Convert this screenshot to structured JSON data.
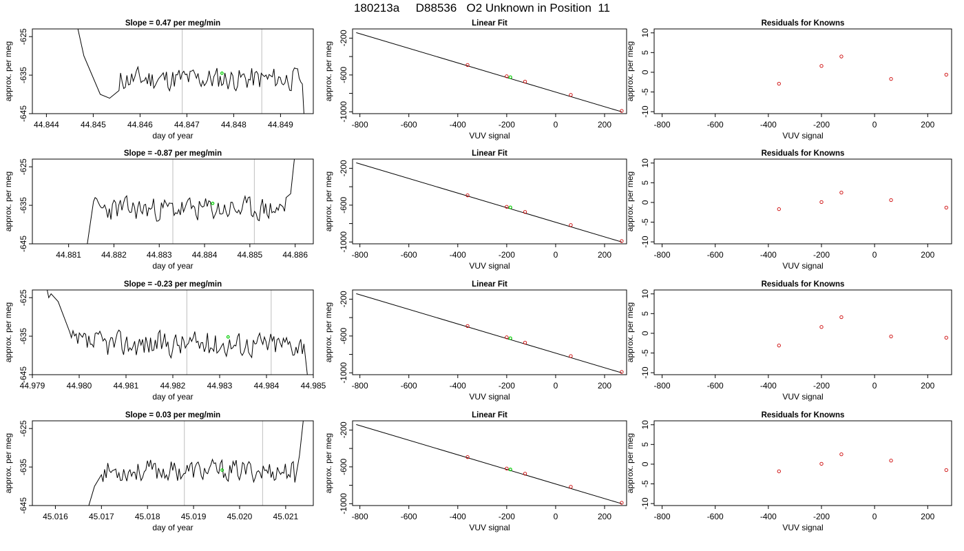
{
  "page_title": "180213a     D88536   O2 Unknown in Position  11",
  "colors": {
    "line": "#000000",
    "highlight_green": "#00cc00",
    "marker_red": "#cc0000",
    "vline_gray": "#c8c8c8"
  },
  "chart_data": [
    {
      "type": "line",
      "row": 1,
      "title": "Slope =  0.47  per meg/min",
      "xlabel": "day of year",
      "ylabel": "approx. per meg",
      "xlim": [
        44.8437,
        44.8497
      ],
      "ylim": [
        -645,
        -623
      ],
      "xticks": [
        44.844,
        44.845,
        44.846,
        44.847,
        44.848,
        44.849
      ],
      "xtick_labels": [
        "44.844",
        "44.845",
        "44.846",
        "44.847",
        "44.848",
        "44.849"
      ],
      "yticks": [
        -625,
        -635,
        -645
      ],
      "ytick_labels": [
        "-625",
        "-635",
        "-645"
      ],
      "vlines": [
        44.8469,
        44.8486
      ],
      "highlight_point": {
        "x": 44.84775,
        "y": -634.5
      },
      "series": [
        {
          "start": 44.8443,
          "end": 44.8497,
          "segments": [
            [
              44.8443,
              -620
            ],
            [
              44.8446,
              -619
            ],
            [
              44.8448,
              -630
            ],
            [
              44.84515,
              -640
            ],
            [
              44.84535,
              -641
            ],
            [
              44.84555,
              -639
            ],
            [
              44.8495,
              -645
            ],
            [
              44.8497,
              -648
            ]
          ],
          "mean": -636,
          "amp": 2.4,
          "seed": 11
        }
      ]
    },
    {
      "type": "line",
      "row": 2,
      "title": "Slope =  -0.87  per meg/min",
      "xlabel": "day of year",
      "ylabel": "approx. per meg",
      "xlim": [
        44.8802,
        44.8864
      ],
      "ylim": [
        -645,
        -623
      ],
      "xticks": [
        44.881,
        44.882,
        44.883,
        44.884,
        44.885,
        44.886
      ],
      "xtick_labels": [
        "44.881",
        "44.882",
        "44.883",
        "44.884",
        "44.885",
        "44.886"
      ],
      "yticks": [
        -625,
        -635,
        -645
      ],
      "ytick_labels": [
        "-625",
        "-635",
        "-645"
      ],
      "vlines": [
        44.8833,
        44.8851
      ],
      "highlight_point": {
        "x": 44.88418,
        "y": -634.5
      },
      "series": [
        {
          "start": 44.8812,
          "end": 44.886,
          "segments": [
            [
              44.8812,
              -646
            ],
            [
              44.8814,
              -646
            ],
            [
              44.88155,
              -634
            ],
            [
              44.8858,
              -633
            ],
            [
              44.8859,
              -632
            ],
            [
              44.886,
              -621
            ]
          ],
          "mean": -636,
          "amp": 2.4,
          "seed": 23
        }
      ]
    },
    {
      "type": "line",
      "row": 3,
      "title": "Slope =  -0.23  per meg/min",
      "xlabel": "day of year",
      "ylabel": "approx. per meg",
      "xlim": [
        44.979,
        44.985
      ],
      "ylim": [
        -645,
        -623
      ],
      "xticks": [
        44.979,
        44.98,
        44.981,
        44.982,
        44.983,
        44.984,
        44.985
      ],
      "xtick_labels": [
        "44.979",
        "44.980",
        "44.981",
        "44.982",
        "44.983",
        "44.984",
        "44.985"
      ],
      "yticks": [
        -625,
        -635,
        -645
      ],
      "ytick_labels": [
        "-625",
        "-635",
        "-645"
      ],
      "vlines": [
        44.9823,
        44.9841
      ],
      "highlight_point": {
        "x": 44.98318,
        "y": -635.2
      },
      "series": [
        {
          "start": 44.9793,
          "end": 44.9849,
          "segments": [
            [
              44.9793,
              -622
            ],
            [
              44.97935,
              -625
            ],
            [
              44.9794,
              -624
            ],
            [
              44.97955,
              -626
            ],
            [
              44.9798,
              -634
            ],
            [
              44.9848,
              -637
            ],
            [
              44.9849,
              -648
            ]
          ],
          "mean": -637,
          "amp": 2.6,
          "seed": 37
        }
      ]
    },
    {
      "type": "line",
      "row": 4,
      "title": "Slope =  0.03  per meg/min",
      "xlabel": "day of year",
      "ylabel": "approx. per meg",
      "xlim": [
        45.0155,
        45.0216
      ],
      "ylim": [
        -645,
        -623
      ],
      "xticks": [
        45.016,
        45.017,
        45.018,
        45.019,
        45.02,
        45.021
      ],
      "xtick_labels": [
        "45.016",
        "45.017",
        "45.018",
        "45.019",
        "45.020",
        "45.021"
      ],
      "yticks": [
        -625,
        -635,
        -645
      ],
      "ytick_labels": [
        "-625",
        "-635",
        "-645"
      ],
      "vlines": [
        45.0188,
        45.0205
      ],
      "highlight_point": {
        "x": 45.01962,
        "y": -635.8
      },
      "series": [
        {
          "start": 45.0167,
          "end": 45.0214,
          "segments": [
            [
              45.0167,
              -646
            ],
            [
              45.01685,
              -640
            ],
            [
              45.017,
              -637
            ],
            [
              45.0212,
              -639
            ],
            [
              45.0213,
              -632
            ],
            [
              45.0214,
              -621
            ]
          ],
          "mean": -636,
          "amp": 2.2,
          "seed": 53
        }
      ]
    },
    {
      "type": "scatter",
      "row": 1,
      "title": "Linear Fit",
      "xlabel": "VUV signal",
      "ylabel": "approx. per meg",
      "xlim": [
        -830,
        290
      ],
      "ylim": [
        -1020,
        -100
      ],
      "xticks": [
        -800,
        -600,
        -400,
        -200,
        0,
        200
      ],
      "xtick_labels": [
        "-800",
        "-600",
        "-400",
        "-200",
        "0",
        "200"
      ],
      "yticks": [
        -200,
        -600,
        -1000
      ],
      "ytick_labels": [
        "-200",
        "-600",
        "-1000"
      ],
      "yminor": [
        -400,
        -800
      ],
      "fit_line": [
        [
          -815,
          -140
        ],
        [
          270,
          -1000
        ]
      ],
      "points": {
        "x": [
          -360,
          -200,
          -125,
          62,
          270
        ],
        "y": [
          -492,
          -614,
          -672,
          -816,
          -990
        ]
      },
      "highlight_point": {
        "x": -185,
        "y": -624
      }
    },
    {
      "type": "scatter",
      "row": 2,
      "title": "Linear Fit",
      "xlabel": "VUV signal",
      "ylabel": "approx. per meg",
      "xlim": [
        -830,
        290
      ],
      "ylim": [
        -1020,
        -100
      ],
      "xticks": [
        -800,
        -600,
        -400,
        -200,
        0,
        200
      ],
      "xtick_labels": [
        "-800",
        "-600",
        "-400",
        "-200",
        "0",
        "200"
      ],
      "yticks": [
        -200,
        -600,
        -1000
      ],
      "ytick_labels": [
        "-200",
        "-600",
        "-1000"
      ],
      "yminor": [
        -400,
        -800
      ],
      "fit_line": [
        [
          -815,
          -140
        ],
        [
          270,
          -1000
        ]
      ],
      "points": {
        "x": [
          -360,
          -200,
          -125,
          62,
          270
        ],
        "y": [
          -494,
          -618,
          -674,
          -816,
          -990
        ]
      },
      "highlight_point": {
        "x": -185,
        "y": -624
      }
    },
    {
      "type": "scatter",
      "row": 3,
      "title": "Linear Fit",
      "xlabel": "VUV signal",
      "ylabel": "approx. per meg",
      "xlim": [
        -830,
        290
      ],
      "ylim": [
        -1020,
        -100
      ],
      "xticks": [
        -800,
        -600,
        -400,
        -200,
        0,
        200
      ],
      "xtick_labels": [
        "-800",
        "-600",
        "-400",
        "-200",
        "0",
        "200"
      ],
      "yticks": [
        -200,
        -600,
        -1000
      ],
      "ytick_labels": [
        "-200",
        "-600",
        "-1000"
      ],
      "yminor": [
        -400,
        -800
      ],
      "fit_line": [
        [
          -815,
          -140
        ],
        [
          270,
          -1000
        ]
      ],
      "points": {
        "x": [
          -360,
          -200,
          -125,
          62,
          270
        ],
        "y": [
          -492,
          -614,
          -672,
          -818,
          -990
        ]
      },
      "highlight_point": {
        "x": -185,
        "y": -624
      }
    },
    {
      "type": "scatter",
      "row": 4,
      "title": "Linear Fit",
      "xlabel": "VUV signal",
      "ylabel": "approx. per meg",
      "xlim": [
        -830,
        290
      ],
      "ylim": [
        -1020,
        -100
      ],
      "xticks": [
        -800,
        -600,
        -400,
        -200,
        0,
        200
      ],
      "xtick_labels": [
        "-800",
        "-600",
        "-400",
        "-200",
        "0",
        "200"
      ],
      "yticks": [
        -200,
        -600,
        -1000
      ],
      "ytick_labels": [
        "-200",
        "-600",
        "-1000"
      ],
      "yminor": [
        -400,
        -800
      ],
      "fit_line": [
        [
          -815,
          -140
        ],
        [
          270,
          -1000
        ]
      ],
      "points": {
        "x": [
          -360,
          -200,
          -125,
          62,
          270
        ],
        "y": [
          -494,
          -618,
          -674,
          -816,
          -990
        ]
      },
      "highlight_point": {
        "x": -185,
        "y": -628
      }
    },
    {
      "type": "scatter",
      "row": 1,
      "title": "Residuals for Knowns",
      "xlabel": "VUV signal",
      "ylabel": "approx. per meg",
      "xlim": [
        -830,
        290
      ],
      "ylim": [
        -10.5,
        11
      ],
      "xticks": [
        -800,
        -600,
        -400,
        -200,
        0,
        200
      ],
      "xtick_labels": [
        "-800",
        "-600",
        "-400",
        "-200",
        "0",
        "200"
      ],
      "yticks": [
        -10,
        -5,
        0,
        5,
        10
      ],
      "ytick_labels": [
        "-10",
        "-5",
        "0",
        "5",
        "10"
      ],
      "points": {
        "x": [
          -360,
          -200,
          -125,
          62,
          270
        ],
        "y": [
          -2.9,
          1.6,
          4.0,
          -1.7,
          -0.6
        ]
      }
    },
    {
      "type": "scatter",
      "row": 2,
      "title": "Residuals for Knowns",
      "xlabel": "VUV signal",
      "ylabel": "approx. per meg",
      "xlim": [
        -830,
        290
      ],
      "ylim": [
        -10.5,
        11
      ],
      "xticks": [
        -800,
        -600,
        -400,
        -200,
        0,
        200
      ],
      "xtick_labels": [
        "-800",
        "-600",
        "-400",
        "-200",
        "0",
        "200"
      ],
      "yticks": [
        -10,
        -5,
        0,
        5,
        10
      ],
      "ytick_labels": [
        "-10",
        "-5",
        "0",
        "5",
        "10"
      ],
      "points": {
        "x": [
          -360,
          -200,
          -125,
          62,
          270
        ],
        "y": [
          -1.7,
          0.1,
          2.5,
          0.6,
          -1.3
        ]
      }
    },
    {
      "type": "scatter",
      "row": 3,
      "title": "Residuals for Knowns",
      "xlabel": "VUV signal",
      "ylabel": "approx. per meg",
      "xlim": [
        -830,
        290
      ],
      "ylim": [
        -10.5,
        11
      ],
      "xticks": [
        -800,
        -600,
        -400,
        -200,
        0,
        200
      ],
      "xtick_labels": [
        "-800",
        "-600",
        "-400",
        "-200",
        "0",
        "200"
      ],
      "yticks": [
        -10,
        -5,
        0,
        5,
        10
      ],
      "ytick_labels": [
        "-10",
        "-5",
        "0",
        "5",
        "10"
      ],
      "points": {
        "x": [
          -360,
          -200,
          -125,
          62,
          270
        ],
        "y": [
          -3.1,
          1.6,
          4.1,
          -0.8,
          -1.1
        ]
      }
    },
    {
      "type": "scatter",
      "row": 4,
      "title": "Residuals for Knowns",
      "xlabel": "VUV signal",
      "ylabel": "approx. per meg",
      "xlim": [
        -830,
        290
      ],
      "ylim": [
        -10.5,
        11
      ],
      "xticks": [
        -800,
        -600,
        -400,
        -200,
        0,
        200
      ],
      "xtick_labels": [
        "-800",
        "-600",
        "-400",
        "-200",
        "0",
        "200"
      ],
      "yticks": [
        -10,
        -5,
        0,
        5,
        10
      ],
      "ytick_labels": [
        "-10",
        "-5",
        "0",
        "5",
        "10"
      ],
      "points": {
        "x": [
          -360,
          -200,
          -125,
          62,
          270
        ],
        "y": [
          -1.8,
          0.1,
          2.5,
          0.9,
          -1.5
        ]
      }
    }
  ]
}
